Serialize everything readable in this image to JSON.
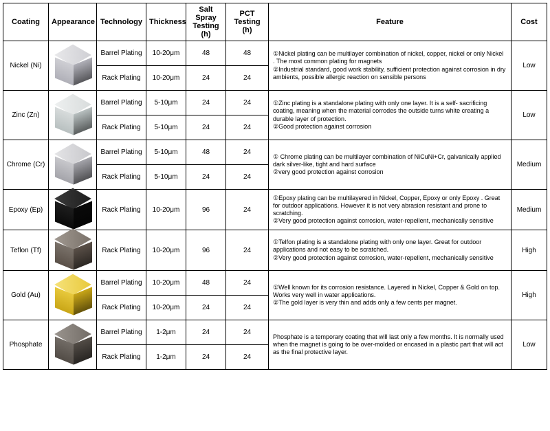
{
  "headers": {
    "coating": "Coating",
    "appearance": "Appearance",
    "technology": "Technology",
    "thickness": "Thickness",
    "salt": "Salt Spray Testing (h)",
    "pct": "PCT Testing (h)",
    "feature": "Feature",
    "cost": "Cost"
  },
  "rows": [
    {
      "coating": "Nickel (Ni)",
      "cube": {
        "top": "#e8e8ea",
        "left": "#cfcfd4",
        "right": "#b0b0b8"
      },
      "tech": [
        {
          "name": "Barrel Plating",
          "thickness": "10-20μm",
          "salt": "48",
          "pct": "48"
        },
        {
          "name": "Rack Plating",
          "thickness": "10-20μm",
          "salt": "24",
          "pct": "24"
        }
      ],
      "feature": "①Nickel plating can be multilayer combination of nickel, copper, nickel or only Nickel . The most common plating for magnets\n②Industrial standard, good work stability, sufficient protection against corrosion in dry ambients, possible allergic reaction on sensible persons",
      "cost": "Low"
    },
    {
      "coating": "Zinc (Zn)",
      "cube": {
        "top": "#eef0f0",
        "left": "#d8dcdc",
        "right": "#b8c0c0"
      },
      "tech": [
        {
          "name": "Barrel Plating",
          "thickness": "5-10μm",
          "salt": "24",
          "pct": "24"
        },
        {
          "name": "Rack Plating",
          "thickness": "5-10μm",
          "salt": "24",
          "pct": "24"
        }
      ],
      "feature": "①Zinc plating is a standalone plating with only one layer. It is a self- sacrificing coating, meaning when the material corrodes the outside turns white creating a durable layer of protection.\n②Good protection against corrosion",
      "cost": "Low"
    },
    {
      "coating": "Chrome (Cr)",
      "cube": {
        "top": "#e4e4e6",
        "left": "#c8c8cc",
        "right": "#a4a4aa"
      },
      "tech": [
        {
          "name": "Barrel Plating",
          "thickness": "5-10μm",
          "salt": "48",
          "pct": "24"
        },
        {
          "name": "Rack Plating",
          "thickness": "5-10μm",
          "salt": "24",
          "pct": "24"
        }
      ],
      "feature": "① Chrome plating can be multilayer combination of NiCuNi+Cr, galvanically applied dark silver-like, tight and hard surface\n②very good protection against corrosion",
      "cost": "Medium"
    },
    {
      "coating": "Epoxy (Ep)",
      "cube": {
        "top": "#3a3a3a",
        "left": "#1e1e1e",
        "right": "#0a0a0a"
      },
      "tech": [
        {
          "name": "Rack Plating",
          "thickness": "10-20μm",
          "salt": "96",
          "pct": "24"
        }
      ],
      "feature": "①Epoxy plating can be multilayered in Nickel, Copper, Epoxy or only Epoxy . Great for outdoor applications. However it is not very abrasion resistant and prone to scratching.\n②Very good protection against corrosion, water-repellent, mechanically sensitive",
      "cost": "Medium"
    },
    {
      "coating": "Teflon (Tf)",
      "cube": {
        "top": "#a09890",
        "left": "#7a726a",
        "right": "#5a5048"
      },
      "tech": [
        {
          "name": "Rack Plating",
          "thickness": "10-20μm",
          "salt": "96",
          "pct": "24"
        }
      ],
      "feature": "①Telfon plating is a standalone plating with only one layer. Great for outdoor applications and not easy to be  scratched.\n②Very good protection against corrosion, water-repellent, mechanically sensitive",
      "cost": "High"
    },
    {
      "coating": "Gold (Au)",
      "cube": {
        "top": "#f6e27a",
        "left": "#e8c93c",
        "right": "#c9a617"
      },
      "tech": [
        {
          "name": "Barrel Plating",
          "thickness": "10-20μm",
          "salt": "48",
          "pct": "24"
        },
        {
          "name": "Rack Plating",
          "thickness": "10-20μm",
          "salt": "24",
          "pct": "24"
        }
      ],
      "feature": "①Well known for its corrosion resistance. Layered in Nickel, Copper & Gold on top. Works very well in water applications.\n②The gold layer is very thin and adds only a few cents per magnet.",
      "cost": "High"
    },
    {
      "coating": "Phosphate",
      "cube": {
        "top": "#9a948e",
        "left": "#726c66",
        "right": "#524c46"
      },
      "tech": [
        {
          "name": "Barrel Plating",
          "thickness": "1-2μm",
          "salt": "24",
          "pct": "24"
        },
        {
          "name": "Rack Plating",
          "thickness": "1-2μm",
          "salt": "24",
          "pct": "24"
        }
      ],
      "feature": "Phosphate is a temporary coating that will last only a few months. It is normally used when the magnet is going to be over-molded or encased in a plastic part that will act as the final protective layer.",
      "cost": "Low"
    }
  ]
}
